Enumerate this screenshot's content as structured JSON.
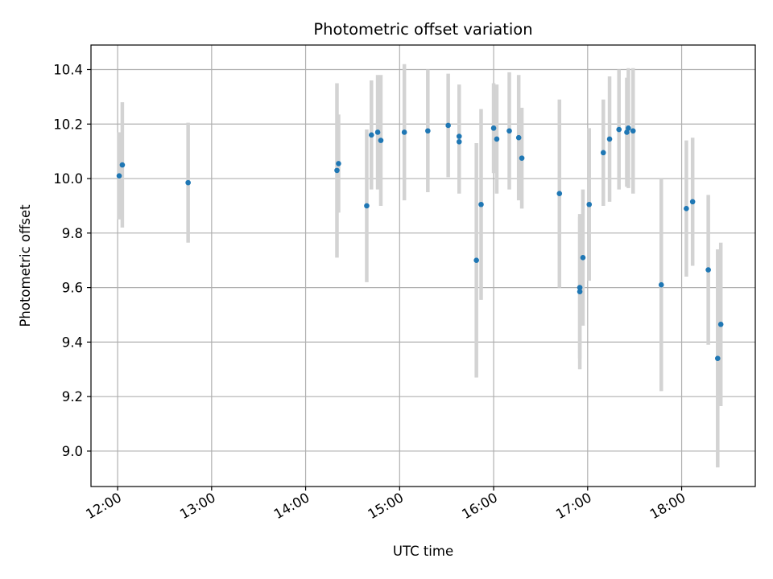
{
  "chart_data": {
    "type": "scatter",
    "title": "Photometric offset variation",
    "xlabel": "UTC time",
    "ylabel": "Photometric offset",
    "x_ticks": [
      "12:00",
      "13:00",
      "14:00",
      "15:00",
      "16:00",
      "17:00",
      "18:00"
    ],
    "y_ticks": [
      "9.0",
      "9.2",
      "9.4",
      "9.6",
      "9.8",
      "10.0",
      "10.2",
      "10.4"
    ],
    "xlim": [
      "11:43",
      "18:47"
    ],
    "ylim": [
      8.87,
      10.49
    ],
    "grid": true,
    "colors": {
      "point": "#1f77b4",
      "errorbar": "#d3d3d3",
      "grid": "#b0b0b0"
    },
    "points": [
      {
        "x": "12:01",
        "y": 10.01,
        "yerr": 0.16
      },
      {
        "x": "12:03",
        "y": 10.05,
        "yerr": 0.23
      },
      {
        "x": "12:45",
        "y": 9.985,
        "yerr": 0.22
      },
      {
        "x": "14:20",
        "y": 10.03,
        "yerr": 0.32
      },
      {
        "x": "14:21",
        "y": 10.055,
        "yerr": 0.18
      },
      {
        "x": "14:39",
        "y": 9.9,
        "yerr": 0.28
      },
      {
        "x": "14:42",
        "y": 10.16,
        "yerr": 0.2
      },
      {
        "x": "14:46",
        "y": 10.17,
        "yerr": 0.21
      },
      {
        "x": "14:48",
        "y": 10.14,
        "yerr": 0.24
      },
      {
        "x": "15:03",
        "y": 10.17,
        "yerr": 0.25
      },
      {
        "x": "15:18",
        "y": 10.175,
        "yerr": 0.225
      },
      {
        "x": "15:31",
        "y": 10.195,
        "yerr": 0.19
      },
      {
        "x": "15:38",
        "y": 10.155,
        "yerr": 0.19
      },
      {
        "x": "15:38",
        "y": 10.135,
        "yerr": 0.19
      },
      {
        "x": "15:49",
        "y": 9.7,
        "yerr": 0.43
      },
      {
        "x": "15:52",
        "y": 9.905,
        "yerr": 0.35
      },
      {
        "x": "16:00",
        "y": 10.185,
        "yerr": 0.165
      },
      {
        "x": "16:02",
        "y": 10.145,
        "yerr": 0.2
      },
      {
        "x": "16:10",
        "y": 10.175,
        "yerr": 0.215
      },
      {
        "x": "16:16",
        "y": 10.15,
        "yerr": 0.23
      },
      {
        "x": "16:18",
        "y": 10.075,
        "yerr": 0.185
      },
      {
        "x": "16:42",
        "y": 9.945,
        "yerr": 0.345
      },
      {
        "x": "16:55",
        "y": 9.6,
        "yerr": 0.26
      },
      {
        "x": "16:55",
        "y": 9.585,
        "yerr": 0.285
      },
      {
        "x": "16:57",
        "y": 9.71,
        "yerr": 0.25
      },
      {
        "x": "17:01",
        "y": 9.905,
        "yerr": 0.28
      },
      {
        "x": "17:10",
        "y": 10.095,
        "yerr": 0.195
      },
      {
        "x": "17:14",
        "y": 10.145,
        "yerr": 0.23
      },
      {
        "x": "17:20",
        "y": 10.18,
        "yerr": 0.22
      },
      {
        "x": "17:25",
        "y": 10.17,
        "yerr": 0.2
      },
      {
        "x": "17:26",
        "y": 10.185,
        "yerr": 0.22
      },
      {
        "x": "17:29",
        "y": 10.175,
        "yerr": 0.23
      },
      {
        "x": "17:47",
        "y": 9.61,
        "yerr": 0.39
      },
      {
        "x": "18:03",
        "y": 9.89,
        "yerr": 0.25
      },
      {
        "x": "18:07",
        "y": 9.915,
        "yerr": 0.235
      },
      {
        "x": "18:17",
        "y": 9.665,
        "yerr": 0.275
      },
      {
        "x": "18:23",
        "y": 9.34,
        "yerr": 0.4
      },
      {
        "x": "18:25",
        "y": 9.465,
        "yerr": 0.3
      }
    ]
  }
}
